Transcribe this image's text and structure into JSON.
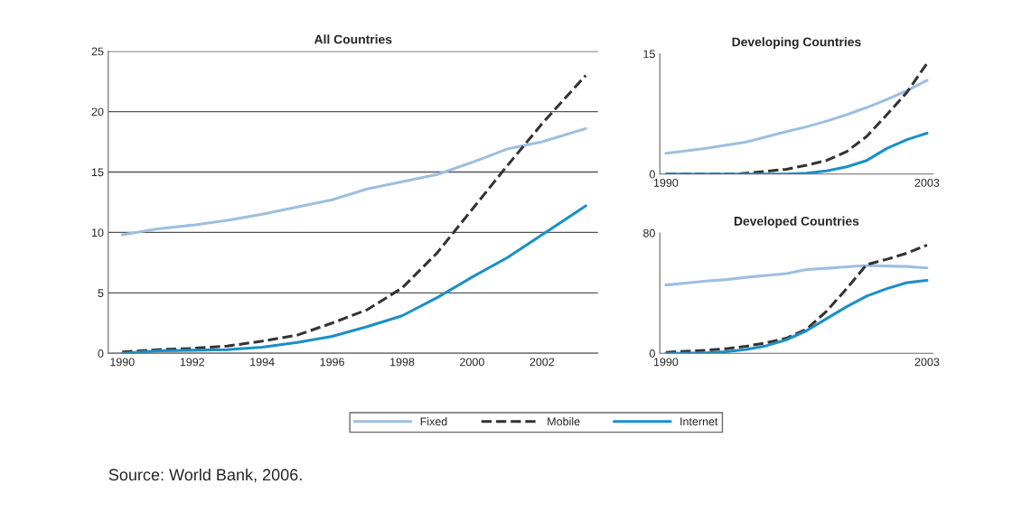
{
  "chart_data": [
    {
      "type": "line",
      "title": "All Countries",
      "x": [
        1990,
        1991,
        1992,
        1993,
        1994,
        1995,
        1996,
        1997,
        1998,
        1999,
        2000,
        2001,
        2002,
        2003.25
      ],
      "xlim": [
        1989.6,
        2003.6
      ],
      "xticks": [
        1990,
        1992,
        1994,
        1996,
        1998,
        2000,
        2002
      ],
      "ylim": [
        0,
        25
      ],
      "yticks": [
        0,
        5,
        10,
        15,
        20,
        25
      ],
      "grid": "y",
      "legend": "bottom",
      "series": [
        {
          "name": "Fixed",
          "color": "#9dbfe0",
          "line_style": "solid",
          "values": [
            9.8,
            10.3,
            10.6,
            11.0,
            11.5,
            12.1,
            12.7,
            13.6,
            14.2,
            14.8,
            15.8,
            16.9,
            17.5,
            18.6
          ]
        },
        {
          "name": "Mobile",
          "color": "#333333",
          "line_style": "dashed",
          "values": [
            0.1,
            0.3,
            0.4,
            0.6,
            1.0,
            1.5,
            2.5,
            3.6,
            5.4,
            8.3,
            11.9,
            15.5,
            19.0,
            23.0
          ]
        },
        {
          "name": "Internet",
          "color": "#1a8fc8",
          "line_style": "solid",
          "values": [
            0,
            0.2,
            0.25,
            0.3,
            0.5,
            0.9,
            1.4,
            2.2,
            3.1,
            4.6,
            6.3,
            7.9,
            9.8,
            12.2
          ]
        }
      ],
      "annotations": [
        "Source: World Bank, 2006."
      ]
    },
    {
      "type": "line",
      "title": "Developing Countries",
      "x": [
        1990,
        1992,
        1993.5,
        1994,
        1996,
        1997,
        1998,
        1999,
        2000,
        2001,
        2002,
        2003
      ],
      "xlim": [
        1989.7,
        2003.3
      ],
      "xticks": [
        1990,
        2003
      ],
      "ylim": [
        0,
        15
      ],
      "yticks": [
        0,
        15
      ],
      "grid": false,
      "series": [
        {
          "color": "#9dbfe0",
          "line_style": "solid",
          "values": [
            2.6,
            3.2,
            3.8,
            4.0,
            5.3,
            5.9,
            6.6,
            7.4,
            8.3,
            9.3,
            10.4,
            11.7
          ]
        },
        {
          "color": "#333333",
          "line_style": "dashed",
          "values": [
            0,
            0,
            0,
            0.1,
            0.6,
            1.1,
            1.7,
            2.8,
            4.7,
            7.4,
            10.2,
            13.8
          ]
        },
        {
          "color": "#1a8fc8",
          "line_style": "solid",
          "values": [
            0,
            0,
            0,
            0,
            0,
            0.1,
            0.4,
            0.9,
            1.7,
            3.2,
            4.3,
            5.1
          ]
        }
      ]
    },
    {
      "type": "line",
      "title": "Developed Countries",
      "x": [
        1990,
        1992,
        1993,
        1994,
        1995,
        1996,
        1997,
        1998,
        1999,
        2000,
        2001,
        2002,
        2003
      ],
      "xlim": [
        1989.7,
        2003.3
      ],
      "xticks": [
        1990,
        2003
      ],
      "ylim": [
        0,
        80
      ],
      "yticks": [
        0,
        80
      ],
      "grid": false,
      "series": [
        {
          "color": "#9dbfe0",
          "line_style": "solid",
          "values": [
            45.4,
            48,
            49,
            50.5,
            51.8,
            53,
            55.7,
            56.5,
            57.5,
            58.4,
            58,
            57.7,
            56.7
          ]
        },
        {
          "color": "#333333",
          "line_style": "dashed",
          "values": [
            0.6,
            2,
            3,
            4.7,
            7,
            10,
            16,
            28,
            43,
            59,
            62.5,
            66.6,
            72
          ]
        },
        {
          "color": "#1a8fc8",
          "line_style": "solid",
          "values": [
            0,
            0.3,
            1,
            2.5,
            5,
            9,
            15,
            23,
            31,
            38,
            43,
            47,
            48.5
          ]
        }
      ]
    }
  ]
}
